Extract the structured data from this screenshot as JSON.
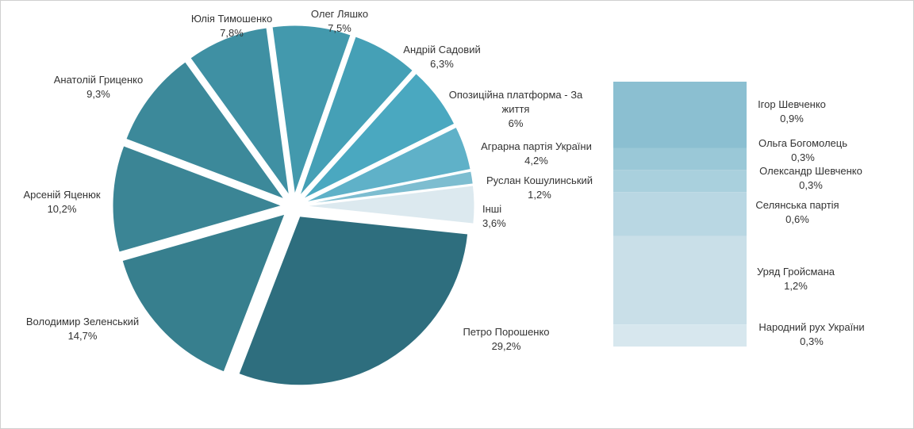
{
  "chart_data": {
    "type": "pie",
    "title": "",
    "series": [
      {
        "name": "Петро Порошенко",
        "value": 29.2,
        "value_label": "29,2%",
        "color": "#2e6e7e"
      },
      {
        "name": "Володимир Зеленський",
        "value": 14.7,
        "value_label": "14,7%",
        "color": "#377f8e"
      },
      {
        "name": "Арсеній Яценюк",
        "value": 10.2,
        "value_label": "10,2%",
        "color": "#3b8595"
      },
      {
        "name": "Анатолій Гриценко",
        "value": 9.3,
        "value_label": "9,3%",
        "color": "#3c899a"
      },
      {
        "name": "Юлія Тимошенко",
        "value": 7.8,
        "value_label": "7,8%",
        "color": "#3f90a3"
      },
      {
        "name": "Олег Ляшко",
        "value": 7.5,
        "value_label": "7,5%",
        "color": "#4399ad"
      },
      {
        "name": "Андрій Садовий",
        "value": 6.3,
        "value_label": "6,3%",
        "color": "#45a0b6"
      },
      {
        "name": "Опозиційна платформа - За життя",
        "name_lines": [
          "Опозиційна платформа - За",
          "життя"
        ],
        "value": 6,
        "value_label": "6%",
        "color": "#4aa8c0"
      },
      {
        "name": "Аграрна партія України",
        "value": 4.2,
        "value_label": "4,2%",
        "color": "#5fb1c8"
      },
      {
        "name": "Руслан Кошулинський",
        "value": 1.2,
        "value_label": "1,2%",
        "color": "#7dbdd0"
      },
      {
        "name": "Інші",
        "value": 3.6,
        "value_label": "3,6%",
        "color": "#dce9ef"
      }
    ],
    "breakdown": {
      "of": "Інші",
      "items": [
        {
          "name": "Ігор Шевченко",
          "value": 0.9,
          "value_label": "0,9%",
          "color": "#8bbfd1"
        },
        {
          "name": "Ольга Богомолець",
          "value": 0.3,
          "value_label": "0,3%",
          "color": "#9ac8d7"
        },
        {
          "name": "Олександр Шевченко",
          "value": 0.3,
          "value_label": "0,3%",
          "color": "#a9d0dd"
        },
        {
          "name": "Селянська партія",
          "value": 0.6,
          "value_label": "0,6%",
          "color": "#b9d7e3"
        },
        {
          "name": "Уряд Гройсмана",
          "value": 1.2,
          "value_label": "1,2%",
          "color": "#c9dfe8"
        },
        {
          "name": "Народний рух України",
          "value": 0.3,
          "value_label": "0,3%",
          "color": "#d7e7ee"
        }
      ]
    }
  }
}
